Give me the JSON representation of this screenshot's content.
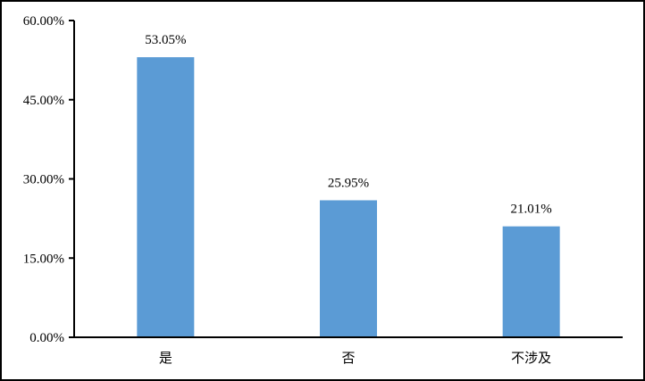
{
  "chart_data": {
    "type": "bar",
    "categories": [
      "是",
      "否",
      "不涉及"
    ],
    "values": [
      53.05,
      25.95,
      21.01
    ],
    "data_labels": [
      "53.05%",
      "25.95%",
      "21.01%"
    ],
    "title": "",
    "xlabel": "",
    "ylabel": "",
    "ylim": [
      0,
      60
    ],
    "yticks": [
      0,
      15,
      30,
      45,
      60
    ],
    "ytick_labels": [
      "0.00%",
      "15.00%",
      "30.00%",
      "45.00%",
      "60.00%"
    ],
    "grid": false,
    "legend": "none",
    "bar_color": "#5B9BD5"
  }
}
